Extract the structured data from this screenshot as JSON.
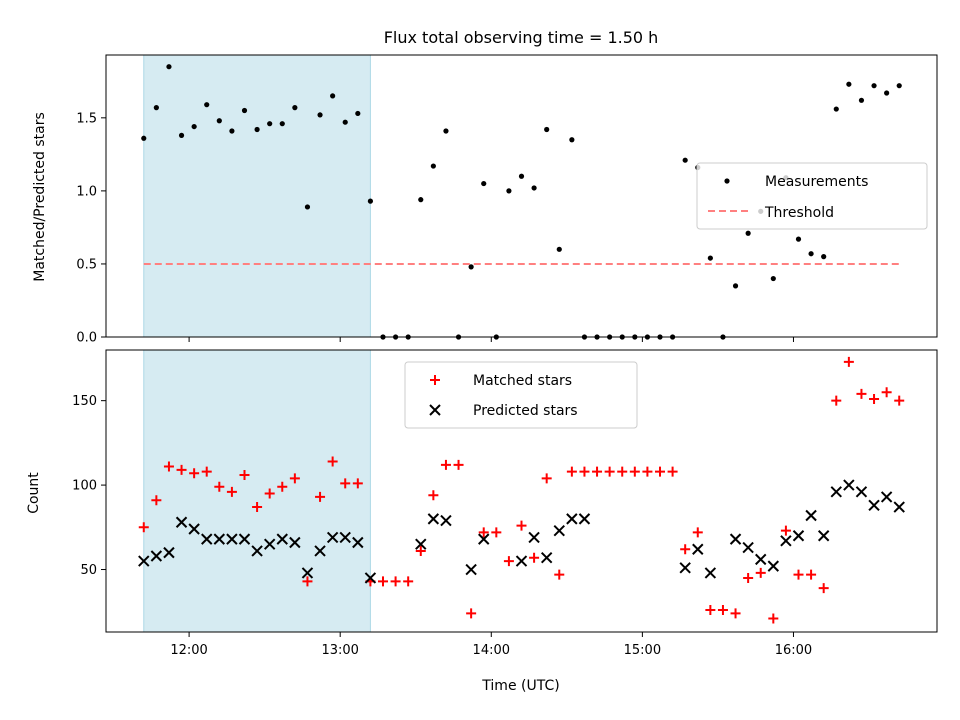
{
  "colors": {
    "shade": "#add8e6",
    "threshold": "#ff8080",
    "measurements": "#000000",
    "matched": "#ff0000",
    "predicted": "#000000"
  },
  "chart_data": [
    {
      "type": "scatter",
      "title": "Flux total observing time = 1.50 h",
      "xlabel": "",
      "ylabel": "Matched/Predicted stars",
      "xlim": [
        "11:27",
        "16:57"
      ],
      "ylim": [
        0,
        1.93
      ],
      "yticks": [
        0.0,
        0.5,
        1.0,
        1.5
      ],
      "ytick_labels": [
        "0.0",
        "0.5",
        "1.0",
        "1.5"
      ],
      "shaded_span": [
        "11:42",
        "13:12"
      ],
      "legend": {
        "placement": "right",
        "entries": [
          "Measurements",
          "Threshold"
        ]
      },
      "threshold": {
        "name": "Threshold",
        "value": 0.5,
        "x": [
          "11:42",
          "16:42"
        ]
      },
      "series": [
        {
          "name": "Measurements",
          "marker": "dot",
          "x": [
            "11:42",
            "11:47",
            "11:52",
            "11:57",
            "12:02",
            "12:07",
            "12:12",
            "12:17",
            "12:22",
            "12:27",
            "12:32",
            "12:37",
            "12:42",
            "12:47",
            "12:52",
            "12:57",
            "13:02",
            "13:07",
            "13:12",
            "13:17",
            "13:22",
            "13:27",
            "13:32",
            "13:37",
            "13:42",
            "13:47",
            "13:52",
            "13:57",
            "14:02",
            "14:07",
            "14:12",
            "14:17",
            "14:22",
            "14:27",
            "14:32",
            "14:37",
            "14:42",
            "14:47",
            "14:52",
            "14:57",
            "15:02",
            "15:07",
            "15:12",
            "15:17",
            "15:22",
            "15:27",
            "15:32",
            "15:37",
            "15:42",
            "15:47",
            "15:52",
            "15:57",
            "16:02",
            "16:07",
            "16:12",
            "16:17",
            "16:22",
            "16:27",
            "16:32",
            "16:37",
            "16:42"
          ],
          "y": [
            1.36,
            1.57,
            1.85,
            1.38,
            1.44,
            1.59,
            1.48,
            1.41,
            1.55,
            1.42,
            1.46,
            1.46,
            1.57,
            0.89,
            1.52,
            1.65,
            1.47,
            1.53,
            0.93,
            0.0,
            0.0,
            0.0,
            0.94,
            1.17,
            1.41,
            0.0,
            0.48,
            1.05,
            0.0,
            1.0,
            1.1,
            1.02,
            1.42,
            0.6,
            1.35,
            0.0,
            0.0,
            0.0,
            0.0,
            0.0,
            0.0,
            0.0,
            0.0,
            1.21,
            1.16,
            0.54,
            0.0,
            0.35,
            0.71,
            0.86,
            0.4,
            1.09,
            0.67,
            0.57,
            0.55,
            1.56,
            1.73,
            1.62,
            1.72,
            1.67,
            1.72
          ]
        }
      ]
    },
    {
      "type": "scatter",
      "title": "",
      "xlabel": "Time (UTC)",
      "ylabel": "Count",
      "xlim": [
        "11:27",
        "16:57"
      ],
      "ylim": [
        13,
        180
      ],
      "yticks": [
        50,
        100,
        150
      ],
      "ytick_labels": [
        "50",
        "100",
        "150"
      ],
      "xticks": [
        "12:00",
        "13:00",
        "14:00",
        "15:00",
        "16:00"
      ],
      "xtick_labels": [
        "12:00",
        "13:00",
        "14:00",
        "15:00",
        "16:00"
      ],
      "shaded_span": [
        "11:42",
        "13:12"
      ],
      "legend": {
        "placement": "upper center",
        "entries": [
          "Matched stars",
          "Predicted stars"
        ]
      },
      "series": [
        {
          "name": "Matched stars",
          "marker": "plus",
          "x": [
            "11:42",
            "11:47",
            "11:52",
            "11:57",
            "12:02",
            "12:07",
            "12:12",
            "12:17",
            "12:22",
            "12:27",
            "12:32",
            "12:37",
            "12:42",
            "12:47",
            "12:52",
            "12:57",
            "13:02",
            "13:07",
            "13:12",
            "13:17",
            "13:22",
            "13:27",
            "13:32",
            "13:37",
            "13:42",
            "13:47",
            "13:52",
            "13:57",
            "14:02",
            "14:07",
            "14:12",
            "14:17",
            "14:22",
            "14:27",
            "14:32",
            "14:37",
            "14:42",
            "14:47",
            "14:52",
            "14:57",
            "15:02",
            "15:07",
            "15:12",
            "15:17",
            "15:22",
            "15:27",
            "15:32",
            "15:37",
            "15:42",
            "15:47",
            "15:52",
            "15:57",
            "16:02",
            "16:07",
            "16:12",
            "16:17",
            "16:22",
            "16:27",
            "16:32",
            "16:37",
            "16:42"
          ],
          "y": [
            75,
            91,
            111,
            109,
            107,
            108,
            99,
            96,
            106,
            87,
            95,
            99,
            104,
            43,
            93,
            114,
            101,
            101,
            43,
            43,
            43,
            43,
            61,
            94,
            112,
            112,
            24,
            72,
            72,
            55,
            76,
            57,
            104,
            47,
            108,
            108,
            108,
            108,
            108,
            108,
            108,
            108,
            108,
            62,
            72,
            26,
            26,
            24,
            45,
            48,
            21,
            73,
            47,
            47,
            39,
            150,
            173,
            154,
            151,
            155,
            150
          ]
        },
        {
          "name": "Predicted stars",
          "marker": "x",
          "x": [
            "11:42",
            "11:47",
            "11:52",
            "11:57",
            "12:02",
            "12:07",
            "12:12",
            "12:17",
            "12:22",
            "12:27",
            "12:32",
            "12:37",
            "12:42",
            "12:47",
            "12:52",
            "12:57",
            "13:02",
            "13:07",
            "13:12",
            "13:32",
            "13:37",
            "13:42",
            "13:52",
            "13:57",
            "14:12",
            "14:17",
            "14:22",
            "14:27",
            "14:32",
            "14:37",
            "15:17",
            "15:22",
            "15:27",
            "15:37",
            "15:42",
            "15:47",
            "15:52",
            "15:57",
            "16:02",
            "16:07",
            "16:12",
            "16:17",
            "16:22",
            "16:27",
            "16:32",
            "16:37",
            "16:42"
          ],
          "y": [
            55,
            58,
            60,
            78,
            74,
            68,
            68,
            68,
            68,
            61,
            65,
            68,
            66,
            48,
            61,
            69,
            69,
            66,
            45,
            65,
            80,
            79,
            50,
            68,
            55,
            69,
            57,
            73,
            80,
            80,
            51,
            62,
            48,
            68,
            63,
            56,
            52,
            67,
            70,
            82,
            70,
            96,
            100,
            96,
            88,
            93,
            87
          ]
        }
      ]
    }
  ]
}
